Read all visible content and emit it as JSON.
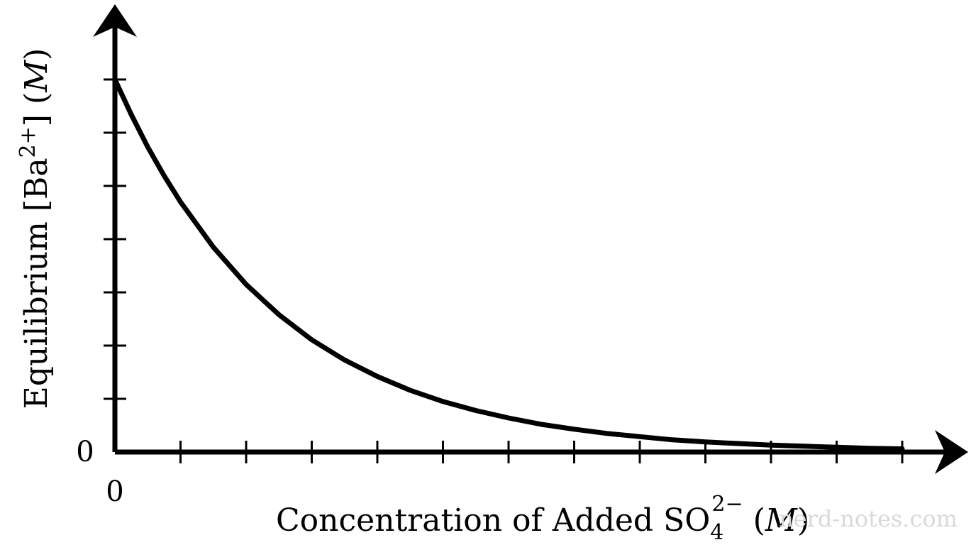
{
  "chart_data": {
    "type": "line",
    "xlabel": {
      "prefix": "Concentration of Added SO",
      "sub": "4",
      "sup": "2−",
      "unit_open": " (",
      "unit": "M",
      "unit_close": ")"
    },
    "ylabel": {
      "prefix": "Equilibrium [Ba",
      "sup": "2+",
      "mid": "] (",
      "unit": "M",
      "unit_close": ")"
    },
    "x_tick_labels": [
      "0"
    ],
    "y_tick_labels": [
      "0"
    ],
    "x_tick_count": 12,
    "y_tick_count": 7,
    "xlim": [
      0,
      12
    ],
    "ylim": [
      0,
      7.6
    ],
    "series": [
      {
        "x": [
          0,
          0.25,
          0.5,
          0.75,
          1,
          1.5,
          2,
          2.5,
          3,
          3.5,
          4,
          4.5,
          5,
          5.5,
          6,
          6.5,
          7,
          7.5,
          8,
          8.5,
          9,
          9.5,
          10,
          10.5,
          11,
          11.5,
          12
        ],
        "values": [
          7.0,
          6.34,
          5.73,
          5.19,
          4.7,
          3.85,
          3.15,
          2.58,
          2.11,
          1.73,
          1.42,
          1.16,
          0.95,
          0.78,
          0.64,
          0.52,
          0.43,
          0.35,
          0.29,
          0.23,
          0.19,
          0.16,
          0.13,
          0.11,
          0.09,
          0.07,
          0.06
        ]
      }
    ],
    "grid": false,
    "legend": "none"
  },
  "watermark": "nerd-notes.com"
}
